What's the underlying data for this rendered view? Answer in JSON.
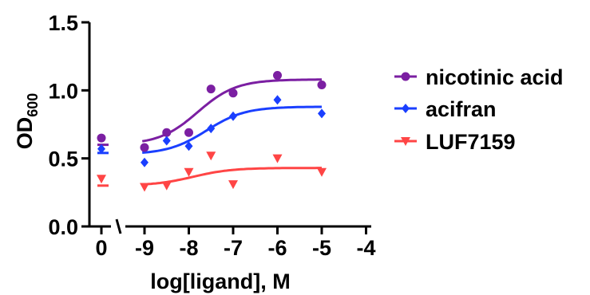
{
  "chart_data": {
    "type": "scatter",
    "xlabel": "log[ligand], M",
    "ylabel_main": "OD",
    "ylabel_sub": "600",
    "ylim": [
      0,
      1.5
    ],
    "xlim": [
      -9.5,
      -3.8
    ],
    "yticks": [
      "0.0",
      "0.5",
      "1.0",
      "1.5"
    ],
    "xticks": [
      "-9",
      "-8",
      "-7",
      "-6",
      "-5",
      "-4"
    ],
    "zero_segment_label": "0",
    "axis_break": true,
    "series": [
      {
        "name": "nicotinic acid",
        "color": "#7b1fa2",
        "marker": "circle",
        "zero_point": 0.65,
        "zero_line": 0.6,
        "points": [
          [
            -9,
            0.58
          ],
          [
            -8.5,
            0.69
          ],
          [
            -8,
            0.69
          ],
          [
            -7.5,
            1.01
          ],
          [
            -7,
            0.98
          ],
          [
            -6,
            1.11
          ],
          [
            -5,
            1.04
          ]
        ],
        "fit": {
          "bottom": 0.6,
          "top": 1.08,
          "logec50": -7.8,
          "hill": 1.0
        }
      },
      {
        "name": "acifran",
        "color": "#1a3fff",
        "marker": "diamond",
        "zero_point": 0.57,
        "zero_line": 0.54,
        "points": [
          [
            -9,
            0.47
          ],
          [
            -8.5,
            0.63
          ],
          [
            -8,
            0.59
          ],
          [
            -7.5,
            0.72
          ],
          [
            -7,
            0.81
          ],
          [
            -6,
            0.93
          ],
          [
            -5,
            0.83
          ]
        ],
        "fit": {
          "bottom": 0.53,
          "top": 0.88,
          "logec50": -7.6,
          "hill": 1.0
        }
      },
      {
        "name": "LUF7159",
        "color": "#ff4545",
        "marker": "triangle-down",
        "zero_point": 0.35,
        "zero_line": 0.3,
        "points": [
          [
            -9,
            0.29
          ],
          [
            -8.5,
            0.3
          ],
          [
            -8,
            0.4
          ],
          [
            -7.5,
            0.52
          ],
          [
            -7,
            0.31
          ],
          [
            -6,
            0.5
          ],
          [
            -5,
            0.4
          ]
        ],
        "fit": {
          "bottom": 0.3,
          "top": 0.43,
          "logec50": -7.9,
          "hill": 1.0
        }
      }
    ],
    "legend_position": "right"
  }
}
